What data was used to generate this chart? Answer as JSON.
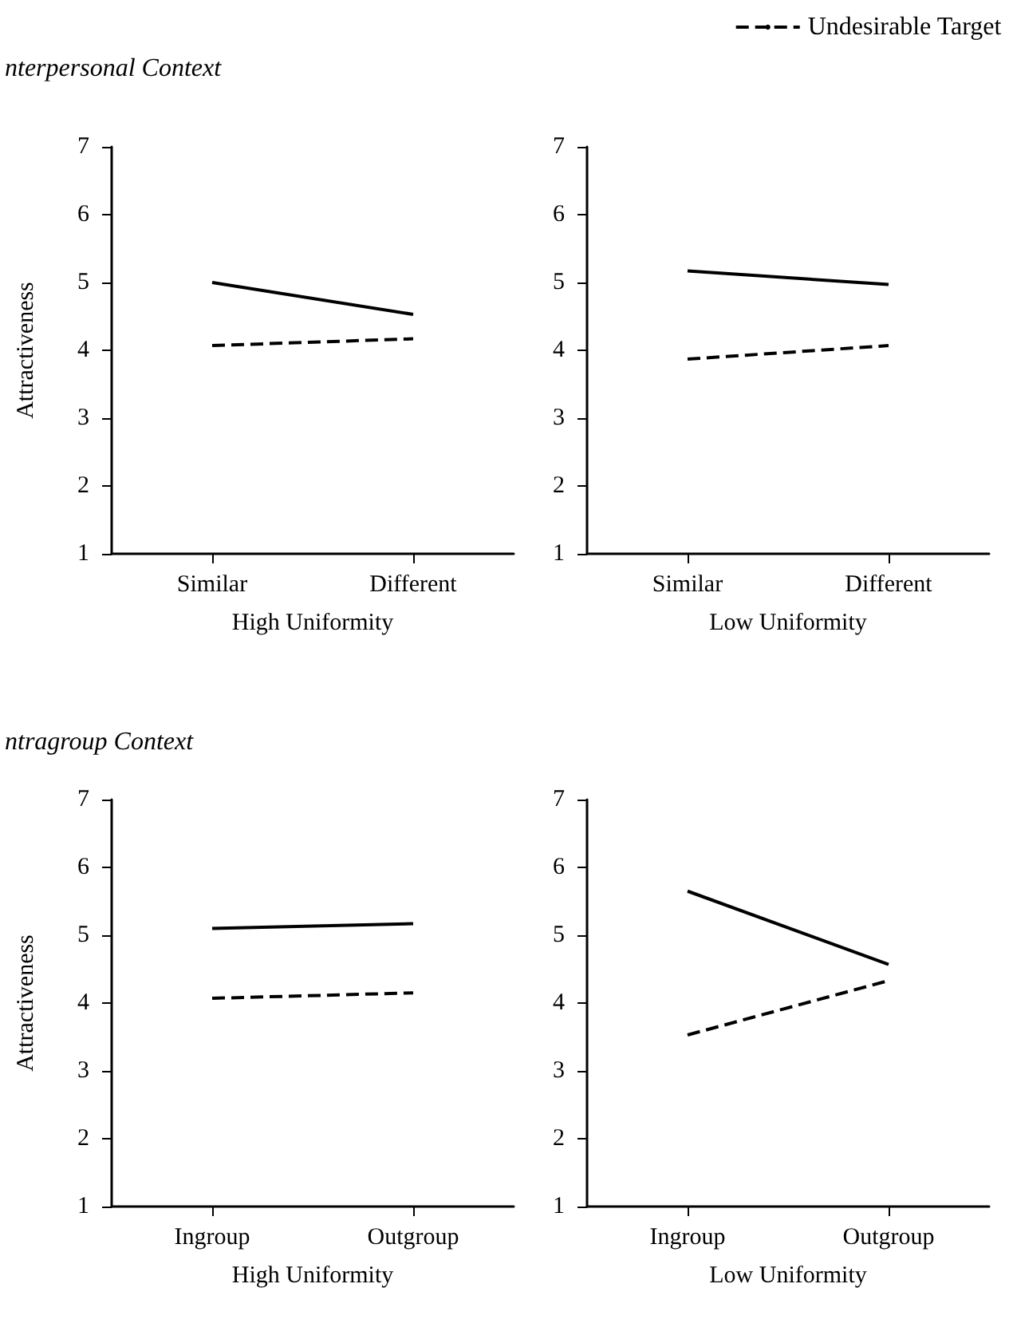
{
  "chart_data": [
    {
      "type": "line",
      "title": "nterpersonal Context",
      "categories": [
        "Similar",
        "Different"
      ],
      "xlabel": "High Uniformity",
      "ylabel": "Attractiveness",
      "ylim": [
        1,
        7
      ],
      "yticks": [
        1,
        2,
        3,
        4,
        5,
        6,
        7
      ],
      "marker": "none",
      "series": [
        {
          "color": "#000000",
          "line_style": "solid",
          "values": [
            5.0,
            4.53
          ]
        },
        {
          "color": "#000000",
          "line_style": "dashed",
          "values": [
            4.07,
            4.17
          ]
        }
      ]
    },
    {
      "type": "line",
      "categories": [
        "Similar",
        "Different"
      ],
      "xlabel": "Low Uniformity",
      "ylim": [
        1,
        7
      ],
      "yticks": [
        1,
        2,
        3,
        4,
        5,
        6,
        7
      ],
      "marker": "none",
      "legend": "top right",
      "series": [
        {
          "color": "#000000",
          "line_style": "solid",
          "values": [
            5.17,
            4.97
          ]
        },
        {
          "name": "Undesirable Target",
          "color": "#000000",
          "line_style": "dashed",
          "values": [
            3.87,
            4.07
          ]
        }
      ]
    },
    {
      "type": "line",
      "title": "ntragroup Context",
      "categories": [
        "Ingroup",
        "Outgroup"
      ],
      "xlabel": "High Uniformity",
      "ylabel": "Attractiveness",
      "ylim": [
        1,
        7
      ],
      "yticks": [
        1,
        2,
        3,
        4,
        5,
        6,
        7
      ],
      "marker": "none",
      "series": [
        {
          "color": "#000000",
          "line_style": "solid",
          "values": [
            5.1,
            5.17
          ]
        },
        {
          "color": "#000000",
          "line_style": "dashed",
          "values": [
            4.07,
            4.15
          ]
        }
      ]
    },
    {
      "type": "line",
      "categories": [
        "Ingroup",
        "Outgroup"
      ],
      "xlabel": "Low Uniformity",
      "ylim": [
        1,
        7
      ],
      "yticks": [
        1,
        2,
        3,
        4,
        5,
        6,
        7
      ],
      "marker": "none",
      "series": [
        {
          "color": "#000000",
          "line_style": "solid",
          "values": [
            5.65,
            4.57
          ]
        },
        {
          "color": "#000000",
          "line_style": "dashed",
          "values": [
            3.53,
            4.33
          ]
        }
      ]
    }
  ]
}
